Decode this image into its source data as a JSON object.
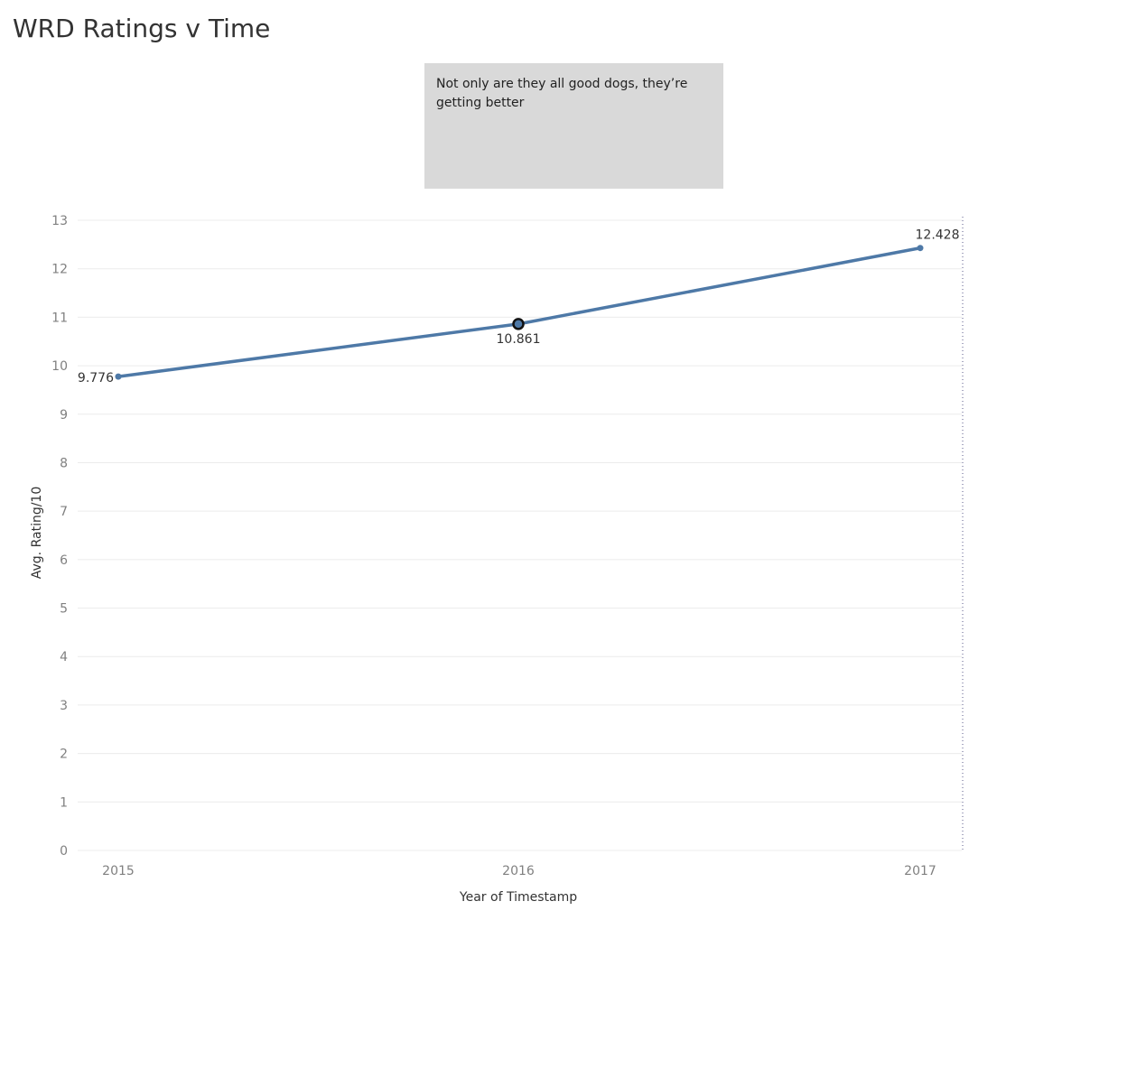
{
  "title": "WRD Ratings v Time",
  "annotation": {
    "text": "Not only are they all good dogs, they’re getting better"
  },
  "colors": {
    "line": "#4e79a7",
    "gridline": "#ececec",
    "tick_label": "#808080",
    "axis_title": "#333333",
    "data_label": "#333333",
    "annotation_bg": "#d9d9d9"
  },
  "chart_data": {
    "type": "line",
    "title": "",
    "xlabel": "Year of Timestamp",
    "ylabel": "Avg. Rating/10",
    "x": [
      "2015",
      "2016",
      "2017"
    ],
    "series": [
      {
        "values": [
          9.776,
          10.861,
          12.428
        ],
        "labels": [
          "9.776",
          "10.861",
          "12.428"
        ]
      }
    ],
    "highlighted_point": "2016",
    "yticks": [
      0,
      1,
      2,
      3,
      4,
      5,
      6,
      7,
      8,
      9,
      10,
      11,
      12,
      13
    ],
    "ylim": [
      0,
      13
    ],
    "grid": true,
    "legend": "none"
  }
}
